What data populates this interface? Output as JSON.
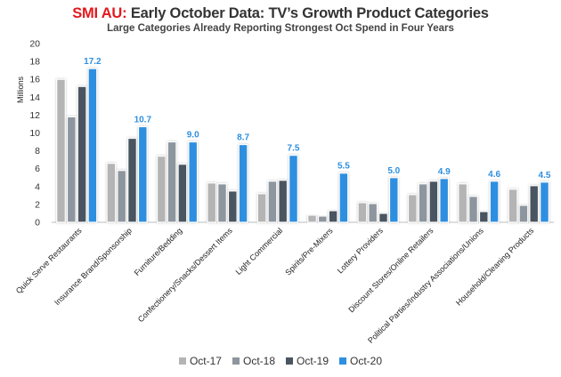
{
  "header": {
    "brand": "SMI AU:",
    "title": "Early October Data: TV’s Growth Product Categories",
    "subtitle": "Large Categories Already Reporting Strongest Oct Spend in Four Years"
  },
  "chart_data": {
    "type": "bar",
    "ylabel": "Millions",
    "ylim": [
      0,
      20
    ],
    "yticks": [
      0,
      2,
      4,
      6,
      8,
      10,
      12,
      14,
      16,
      18,
      20
    ],
    "legend_position": "bottom",
    "grid": false,
    "categories": [
      "Quick Serve Restaurants",
      "Insurance Brand/Sponsorship",
      "Furniture/Bedding",
      "Confectionery/Snacks/Dessert Items",
      "Light Commercial",
      "Spirits/Pre-Mixers",
      "Lottery Providers",
      "Discount Stores/Online Retailers",
      "Political Parties/Industry Associations/Unions",
      "Household/Cleaning Products"
    ],
    "series": [
      {
        "name": "Oct-17",
        "color": "#b4b4b4",
        "values": [
          16.0,
          6.6,
          7.4,
          4.4,
          3.2,
          0.8,
          2.2,
          3.1,
          4.3,
          3.7
        ]
      },
      {
        "name": "Oct-18",
        "color": "#8d969e",
        "values": [
          11.8,
          5.8,
          9.0,
          4.3,
          4.6,
          0.7,
          2.1,
          4.3,
          2.9,
          1.9
        ]
      },
      {
        "name": "Oct-19",
        "color": "#4a5560",
        "values": [
          15.2,
          9.4,
          6.5,
          3.5,
          4.7,
          1.3,
          1.0,
          4.6,
          1.2,
          4.1
        ]
      },
      {
        "name": "Oct-20",
        "color": "#2d8fe0",
        "values": [
          17.2,
          10.7,
          9.0,
          8.7,
          7.5,
          5.5,
          5.0,
          4.9,
          4.6,
          4.5
        ]
      }
    ],
    "data_labels": [
      "17.2",
      "10.7",
      "9.0",
      "8.7",
      "7.5",
      "5.5",
      "5.0",
      "4.9",
      "4.6",
      "4.5"
    ]
  }
}
